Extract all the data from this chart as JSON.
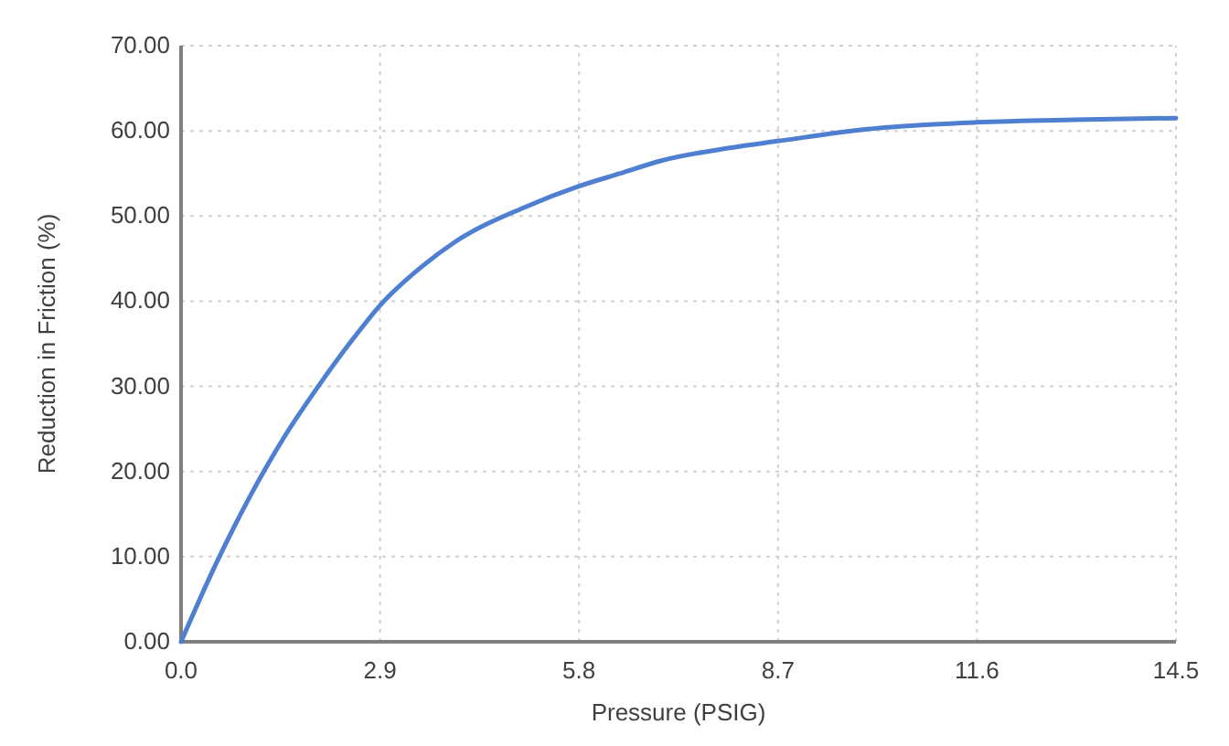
{
  "chart_data": {
    "type": "line",
    "xlabel": "Pressure (PSIG)",
    "ylabel": "Reduction in Friction (%)",
    "x": [
      0,
      0.5,
      1,
      1.5,
      2,
      2.5,
      2.9,
      3.5,
      4,
      5,
      5.8,
      6.4,
      7,
      8,
      8.7,
      10,
      11.6,
      13,
      14.5
    ],
    "series": [
      {
        "color": "#4f7fd0",
        "values": [
          0,
          9,
          17,
          24,
          30,
          35.5,
          39.5,
          44,
          47,
          51,
          53.5,
          55,
          56.5,
          58,
          58.8,
          60.2,
          61,
          61.3,
          61.5
        ]
      }
    ],
    "xlim": [
      0,
      14.5
    ],
    "xticks": [
      {
        "value": 0,
        "label": "0.0"
      },
      2.9,
      5.8,
      8.7,
      11.6,
      14.5
    ],
    "ylim": [
      0,
      70
    ],
    "yticks": [
      {
        "value": 0,
        "label": "0.00"
      },
      {
        "value": 10,
        "label": "10.00"
      },
      {
        "value": 20,
        "label": "20.00"
      },
      {
        "value": 30,
        "label": "30.00"
      },
      {
        "value": 40,
        "label": "40.00"
      },
      {
        "value": 50,
        "label": "50.00"
      },
      {
        "value": 60,
        "label": "60.00"
      },
      {
        "value": 70,
        "label": "70.00"
      }
    ],
    "grid": true,
    "marker": "none",
    "line_style": "solid"
  }
}
